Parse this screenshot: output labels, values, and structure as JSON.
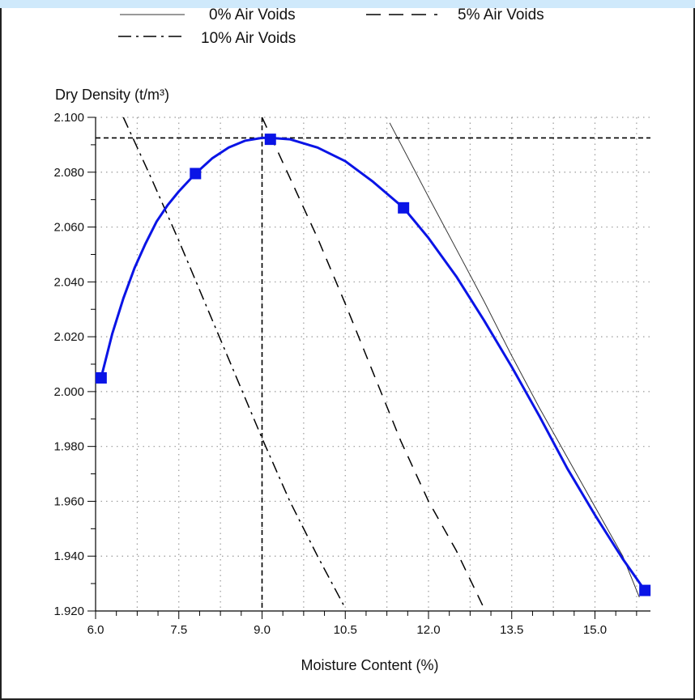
{
  "header": {
    "title": ""
  },
  "colors": {
    "curve": "#0a14e6",
    "marker": "#0a14e6",
    "grid": "#9a9a9a",
    "lines": "#000000",
    "background": "#ffffff"
  },
  "chart_data": {
    "type": "line",
    "title": "",
    "xlabel": "Moisture Content (%)",
    "ylabel": "Dry Density (t/m³)",
    "xlim": [
      6.0,
      16.0
    ],
    "ylim": [
      1.92,
      2.1
    ],
    "xticks": [
      "6.0",
      "7.5",
      "9.0",
      "10.5",
      "12.0",
      "13.5",
      "15.0"
    ],
    "xtick_values": [
      6.0,
      7.5,
      9.0,
      10.5,
      12.0,
      13.5,
      15.0
    ],
    "yticks": [
      "1.920",
      "1.940",
      "1.960",
      "1.980",
      "2.000",
      "2.020",
      "2.040",
      "2.060",
      "2.080",
      "2.100"
    ],
    "ytick_values": [
      1.92,
      1.94,
      1.96,
      1.98,
      2.0,
      2.02,
      2.04,
      2.06,
      2.08,
      2.1
    ],
    "grid": true,
    "legend_position": "top",
    "legend": [
      {
        "label": "0% Air Voids",
        "style": "solid-thin"
      },
      {
        "label": "5% Air Voids",
        "style": "dashed"
      },
      {
        "label": "10% Air Voids",
        "style": "dashdot"
      }
    ],
    "compaction_curve": {
      "points": [
        {
          "x": 6.1,
          "y": 2.005
        },
        {
          "x": 7.8,
          "y": 2.0795
        },
        {
          "x": 9.15,
          "y": 2.092
        },
        {
          "x": 11.55,
          "y": 2.067
        },
        {
          "x": 15.9,
          "y": 1.9275
        }
      ],
      "curve": [
        [
          6.1,
          2.005
        ],
        [
          6.3,
          2.021
        ],
        [
          6.5,
          2.034
        ],
        [
          6.7,
          2.045
        ],
        [
          6.9,
          2.054
        ],
        [
          7.1,
          2.062
        ],
        [
          7.3,
          2.068
        ],
        [
          7.5,
          2.073
        ],
        [
          7.8,
          2.0795
        ],
        [
          8.1,
          2.085
        ],
        [
          8.4,
          2.089
        ],
        [
          8.7,
          2.0915
        ],
        [
          9.0,
          2.0925
        ],
        [
          9.15,
          2.0925
        ],
        [
          9.5,
          2.092
        ],
        [
          10.0,
          2.089
        ],
        [
          10.5,
          2.084
        ],
        [
          11.0,
          2.0765
        ],
        [
          11.55,
          2.067
        ],
        [
          12.0,
          2.056
        ],
        [
          12.5,
          2.042
        ],
        [
          13.0,
          2.026
        ],
        [
          13.5,
          2.009
        ],
        [
          14.0,
          1.991
        ],
        [
          14.5,
          1.972
        ],
        [
          15.0,
          1.955
        ],
        [
          15.5,
          1.939
        ],
        [
          15.9,
          1.9275
        ]
      ]
    },
    "optimum": {
      "moisture": 9.0,
      "dry_density": 2.0925
    },
    "zero_air_voids_line": [
      [
        11.3,
        2.098
      ],
      [
        12.0,
        2.071
      ],
      [
        12.5,
        2.052
      ],
      [
        13.0,
        2.033
      ],
      [
        13.5,
        2.013
      ],
      [
        14.0,
        1.994
      ],
      [
        14.5,
        1.976
      ],
      [
        15.0,
        1.958
      ],
      [
        15.5,
        1.94
      ],
      [
        15.8,
        1.925
      ]
    ],
    "air_voids_5_line": [
      [
        9.0,
        2.1
      ],
      [
        9.5,
        2.078
      ],
      [
        10.0,
        2.056
      ],
      [
        10.5,
        2.032
      ],
      [
        11.0,
        2.007
      ],
      [
        11.5,
        1.982
      ],
      [
        12.0,
        1.96
      ],
      [
        12.5,
        1.942
      ],
      [
        13.0,
        1.921
      ]
    ],
    "air_voids_10_line": [
      [
        6.5,
        2.1
      ],
      [
        7.0,
        2.078
      ],
      [
        7.5,
        2.055
      ],
      [
        8.0,
        2.031
      ],
      [
        8.5,
        2.007
      ],
      [
        9.0,
        1.983
      ],
      [
        9.5,
        1.96
      ],
      [
        10.0,
        1.94
      ],
      [
        10.5,
        1.921
      ]
    ]
  }
}
